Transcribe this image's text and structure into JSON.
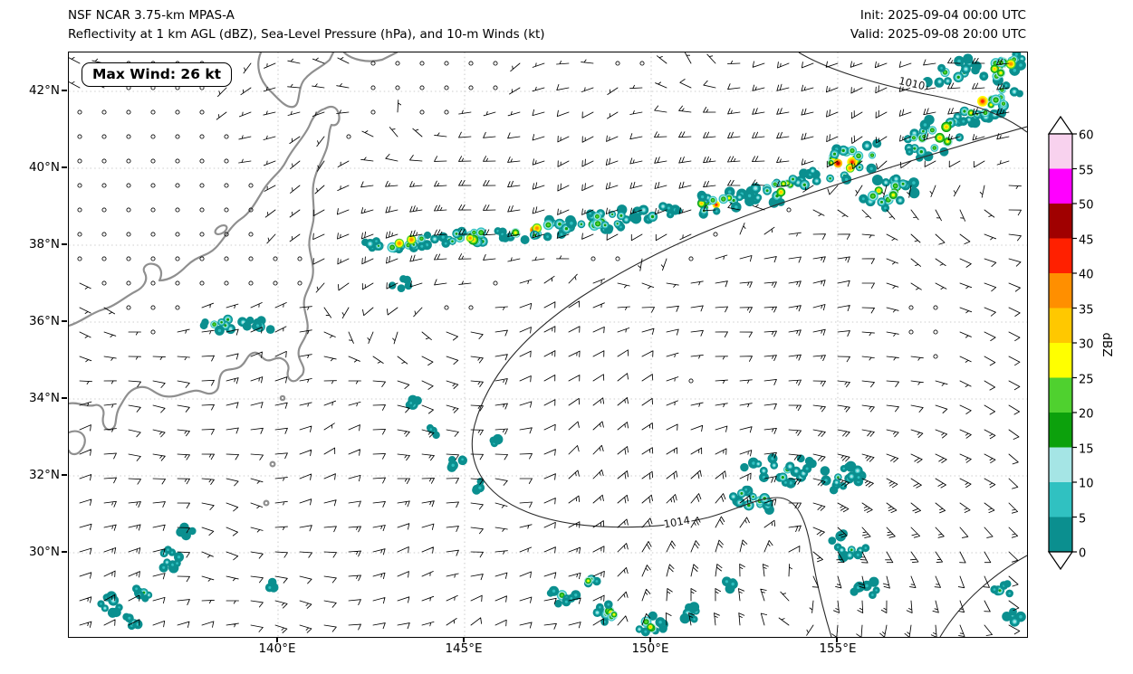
{
  "header": {
    "model": "NSF NCAR 3.75-km MPAS-A",
    "subtitle": "Reflectivity at 1 km AGL (dBZ), Sea-Level Pressure (hPa), and 10-m Winds (kt)",
    "init": "Init: 2025-09-04 00:00 UTC",
    "valid": "Valid: 2025-09-08 20:00 UTC"
  },
  "map": {
    "max_wind": "Max Wind: 26 kt",
    "contour_labels": {
      "ne": "1010",
      "low": "1014"
    }
  },
  "axes": {
    "lat_ticks": [
      "42°N",
      "40°N",
      "38°N",
      "36°N",
      "34°N",
      "32°N",
      "30°N"
    ],
    "lon_ticks": [
      "140°E",
      "145°E",
      "150°E",
      "155°E"
    ]
  },
  "colorbar": {
    "label": "dBZ",
    "ticks": [
      "60",
      "55",
      "50",
      "45",
      "40",
      "35",
      "30",
      "25",
      "20",
      "15",
      "10",
      "5",
      "0"
    ],
    "segment_colors_top_to_bottom": [
      "#f8d2ee",
      "#ff00ff",
      "#a00000",
      "#ff2000",
      "#ff8f00",
      "#ffc800",
      "#ffff00",
      "#4fd12f",
      "#0ca10c",
      "#a5e5e5",
      "#30c1c1",
      "#0b8f8f"
    ],
    "over_color": "#ffffff",
    "under_color": "#ffffff"
  },
  "chart_data": {
    "type": "heatmap",
    "title": "Reflectivity at 1 km AGL (dBZ), Sea-Level Pressure (hPa), and 10-m Winds (kt)",
    "model": "NSF NCAR 3.75-km MPAS-A",
    "init_time": "2025-09-04 00:00 UTC",
    "valid_time": "2025-09-08 20:00 UTC",
    "x_axis": {
      "quantity": "longitude",
      "tick_labels": [
        "140°E",
        "145°E",
        "150°E",
        "155°E"
      ],
      "approx_range": [
        "134.4°E",
        "160.0°E"
      ]
    },
    "y_axis": {
      "quantity": "latitude",
      "tick_labels": [
        "42°N",
        "40°N",
        "38°N",
        "36°N",
        "34°N",
        "32°N",
        "30°N"
      ],
      "approx_range": [
        "27.8°N",
        "42.9°N"
      ]
    },
    "colorbar": {
      "label": "dBZ",
      "min": 0,
      "max": 60,
      "tick_interval": 5,
      "extended_ends": true
    },
    "overlays": [
      "reflectivity shading (dBZ)",
      "sea-level pressure contours (hPa)",
      "10-m wind barbs (kt)",
      "calm-wind open circles",
      "gray coastlines of Japan"
    ],
    "annotations": [
      {
        "text": "Max Wind: 26 kt",
        "location": "top-left rounded box"
      },
      {
        "text": "1010",
        "type": "SLP contour label",
        "location": "upper-right, ~41.8°N 157°E"
      },
      {
        "text": "1014",
        "type": "SLP contour label",
        "location": "south-central, ~31.5°N 150.8°E"
      }
    ],
    "features": [
      "Intense NE-SW convective band with 40-50+ dBZ cores arcing from ~37.8°N,144°E through ~39°N,149°E to the NE corner near 42-43°N,158-160°E",
      "Comma-shaped cluster of 5-35 dBZ echoes around a weak low near ~31.5°N,153.5°E",
      "Scattered shallow cells (<30 dBZ) east/south of Honshu and along the southern edge near 28-29°N",
      "Calm/light winds (open circles) northwest of the band near northern Japan and in mid-domain pockets near 34°N,151°E and 36°N,157°E",
      "Domain maximum 10-m wind of 26 kt within the frontal band"
    ]
  }
}
